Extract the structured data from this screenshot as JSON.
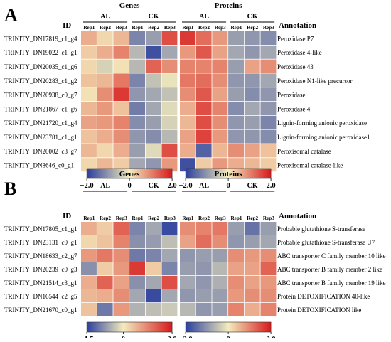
{
  "chart_data": [
    {
      "type": "heatmap",
      "panel_label": "A",
      "id_header": "ID",
      "annotation_header": "Annotation",
      "group_titles": [
        "Genes",
        "Proteins"
      ],
      "groups": [
        "AL",
        "CK"
      ],
      "columns": [
        "Rep1",
        "Rep2",
        "Rep3",
        "Rep1",
        "Rep2",
        "Rep3"
      ],
      "rows": [
        {
          "id": "TRINITY_DN17819_c1_g4",
          "annotation": "Peroxidase P7"
        },
        {
          "id": "TRINITY_DN19022_c1_g1",
          "annotation": "Peroxidase 4-like"
        },
        {
          "id": "TRINITY_DN20035_c1_g6",
          "annotation": "Peroxidase 43"
        },
        {
          "id": "TRINITY_DN20283_c1_g2",
          "annotation": "Peroxidase N1-like precursor"
        },
        {
          "id": "TRINITY_DN20938_c0_g7",
          "annotation": "Peroxidase"
        },
        {
          "id": "TRINITY_DN21867_c1_g6",
          "annotation": "Peroxidase 4"
        },
        {
          "id": "TRINITY_DN21720_c1_g4",
          "annotation": "Lignin-forming anionic peroxidase"
        },
        {
          "id": "TRINITY_DN23781_c1_g1",
          "annotation": "Lignin-forming anionic peroxidase1"
        },
        {
          "id": "TRINITY_DN20002_c3_g7",
          "annotation": "Peroxisomal catalase"
        },
        {
          "id": "TRINITY_DN8646_c0_g1",
          "annotation": "Peroxisomal catalase-like"
        }
      ],
      "genes_values": [
        [
          0.6,
          0.2,
          0.5,
          -1.2,
          -0.9,
          1.5
        ],
        [
          0.3,
          0.6,
          1.0,
          -0.6,
          -1.8,
          -0.8
        ],
        [
          0.2,
          -0.3,
          0.1,
          -0.6,
          1.3,
          0.9
        ],
        [
          0.4,
          0.5,
          1.1,
          -1.2,
          -0.5,
          -0.1
        ],
        [
          0.1,
          0.9,
          1.7,
          -1.0,
          -0.8,
          -0.5
        ],
        [
          0.5,
          0.8,
          0.4,
          -1.3,
          -0.8,
          -0.2
        ],
        [
          0.7,
          0.8,
          1.0,
          -1.1,
          -0.9,
          -0.3
        ],
        [
          0.4,
          0.6,
          0.9,
          -1.0,
          -1.1,
          -0.6
        ],
        [
          0.5,
          0.2,
          0.6,
          -0.9,
          -0.2,
          1.5
        ],
        [
          0.2,
          0.5,
          0.3,
          -0.8,
          -1.0,
          0.8
        ]
      ],
      "proteins_values": [
        [
          1.7,
          1.2,
          0.8,
          -0.9,
          -1.0,
          -1.1
        ],
        [
          0.8,
          1.4,
          0.7,
          -0.8,
          -1.0,
          -0.8
        ],
        [
          1.0,
          1.0,
          1.0,
          -0.9,
          0.7,
          0.9
        ],
        [
          1.1,
          1.2,
          0.9,
          -1.0,
          -1.0,
          -0.8
        ],
        [
          0.9,
          1.4,
          0.7,
          -0.9,
          -1.1,
          -1.0
        ],
        [
          0.6,
          1.5,
          1.0,
          -1.1,
          -0.8,
          -1.0
        ],
        [
          0.5,
          1.5,
          0.9,
          -1.0,
          -0.9,
          -1.2
        ],
        [
          0.7,
          1.6,
          0.8,
          -1.0,
          -1.0,
          -1.1
        ],
        [
          0.6,
          -1.6,
          0.5,
          0.9,
          0.7,
          0.4
        ],
        [
          -1.8,
          0.3,
          0.8,
          0.6,
          0.5,
          0.3
        ]
      ],
      "colorbars": [
        {
          "min": -2.0,
          "max": 2.0,
          "ticks": [
            "−2.0",
            "0",
            "2.0"
          ]
        },
        {
          "min": -2.0,
          "max": 2.0,
          "ticks": [
            "−2.0",
            "0",
            "2.0"
          ]
        }
      ]
    },
    {
      "type": "heatmap",
      "panel_label": "B",
      "id_header": "ID",
      "annotation_header": "Annotation",
      "group_titles": [
        "Genes",
        "Proteins"
      ],
      "groups": [
        "AL",
        "CK"
      ],
      "columns": [
        "Rep1",
        "Rep2",
        "Rep3",
        "Rep1",
        "Rep2",
        "Rep3"
      ],
      "rows": [
        {
          "id": "TRINITY_DN17805_c1_g1",
          "annotation": "Probable glutathione S-transferase"
        },
        {
          "id": "TRINITY_DN23131_c0_g1",
          "annotation": "Probable glutathione S-transferase U7"
        },
        {
          "id": "TRINITY_DN18633_c2_g7",
          "annotation": "ABC transporter C family member 10 like"
        },
        {
          "id": "TRINITY_DN20239_c0_g3",
          "annotation": "ABC transporter B family member 2 like"
        },
        {
          "id": "TRINITY_DN21514_c3_g1",
          "annotation": "ABC transporter B family member 19 like"
        },
        {
          "id": "TRINITY_DN16544_c2_g5",
          "annotation": "Protein DETOXIFICATION 40-like"
        },
        {
          "id": "TRINITY_DN21670_c0_g1",
          "annotation": "Protein DETOXIFICATION like"
        }
      ],
      "genes_values": [
        [
          0.6,
          0.3,
          1.3,
          -0.9,
          -0.6,
          -1.4
        ],
        [
          0.2,
          0.4,
          1.0,
          -0.8,
          -0.7,
          -0.4
        ],
        [
          0.8,
          1.1,
          0.9,
          -1.0,
          -0.9,
          -0.6
        ],
        [
          -0.8,
          0.3,
          0.8,
          1.7,
          0.3,
          -0.9
        ],
        [
          0.6,
          1.3,
          0.7,
          -0.8,
          -0.6,
          1.5
        ],
        [
          0.5,
          0.6,
          0.9,
          -0.6,
          -1.4,
          -0.6
        ],
        [
          0.4,
          -1.0,
          0.8,
          -0.5,
          -0.4,
          -0.3
        ]
      ],
      "proteins_values": [
        [
          0.9,
          1.0,
          1.1,
          -0.9,
          -1.4,
          -0.9
        ],
        [
          0.7,
          1.2,
          0.9,
          -1.0,
          -0.9,
          -0.8
        ],
        [
          -1.0,
          -0.9,
          -0.9,
          0.9,
          0.8,
          0.9
        ],
        [
          -0.9,
          -1.0,
          -0.6,
          0.7,
          0.7,
          1.3
        ],
        [
          -0.8,
          -1.0,
          -0.7,
          0.9,
          0.7,
          0.8
        ],
        [
          -1.0,
          -0.9,
          -0.9,
          0.8,
          0.9,
          0.9
        ],
        [
          -0.6,
          -1.0,
          -0.9,
          1.0,
          0.6,
          1.0
        ]
      ],
      "colorbars": [
        {
          "min": -1.5,
          "max": 2.0,
          "ticks": [
            "−1.5",
            "0",
            "2.0"
          ]
        },
        {
          "min": -2.0,
          "max": 2.0,
          "ticks": [
            "−2.0",
            "0",
            "2.0"
          ]
        }
      ]
    }
  ],
  "colors": {
    "low": "#2b3f9e",
    "mid": "#f3ecbd",
    "high": "#d7191c"
  }
}
